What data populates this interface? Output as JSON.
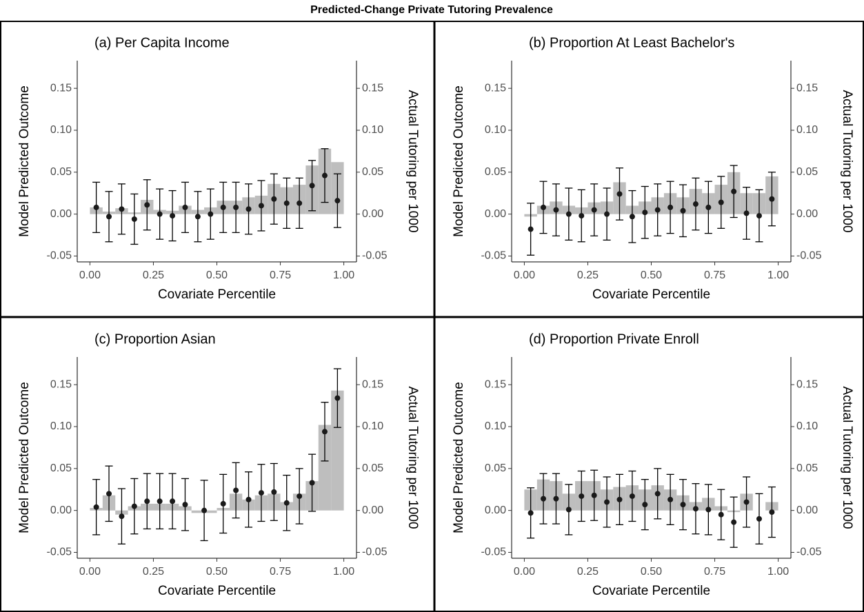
{
  "title": "Predicted-Change Private Tutoring Prevalence",
  "chart_data": [
    {
      "type": "combo",
      "title": "(a) Per Capita Income",
      "xlabel": "Covariate Percentile",
      "ylabel": "Model Predicted Outcome",
      "y2label": "Actual Tutoring per 1000",
      "xlim": [
        -0.05,
        1.05
      ],
      "ylim": [
        -0.057,
        0.183
      ],
      "y2lim": [
        -0.057,
        0.183
      ],
      "xticks": [
        {
          "value": 0,
          "label": "0.00"
        },
        {
          "value": 0.25,
          "label": "0.25"
        },
        {
          "value": 0.5,
          "label": "0.50"
        },
        {
          "value": 0.75,
          "label": "0.75"
        },
        {
          "value": 1,
          "label": "1.00"
        }
      ],
      "yticks": [
        {
          "value": -0.05,
          "label": "-0.05"
        },
        {
          "value": 0,
          "label": "0.00"
        },
        {
          "value": 0.05,
          "label": "0.05"
        },
        {
          "value": 0.1,
          "label": "0.10"
        },
        {
          "value": 0.15,
          "label": "0.15"
        }
      ],
      "y2ticks": [
        {
          "value": -0.05,
          "label": "-0.05"
        },
        {
          "value": 0,
          "label": "0.00"
        },
        {
          "value": 0.05,
          "label": "0.05"
        },
        {
          "value": 0.1,
          "label": "0.10"
        },
        {
          "value": 0.15,
          "label": "0.15"
        }
      ],
      "bins": [
        0,
        0.05,
        0.1,
        0.15,
        0.2,
        0.25,
        0.3,
        0.35,
        0.4,
        0.45,
        0.5,
        0.55,
        0.6,
        0.65,
        0.7,
        0.75,
        0.8,
        0.85,
        0.9,
        0.95,
        1
      ],
      "bars": {
        "color": "#bebebe",
        "values": [
          0.008,
          0.003,
          0.007,
          0.002,
          0.017,
          0.005,
          0.004,
          0.01,
          0.005,
          0.008,
          0.016,
          0.016,
          0.02,
          0.022,
          0.036,
          0.032,
          0.035,
          0.058,
          0.078,
          0.062
        ]
      },
      "points": {
        "color": "#1a1a1a",
        "values": [
          0.008,
          -0.003,
          0.006,
          -0.006,
          0.011,
          0.0,
          -0.002,
          0.008,
          -0.003,
          0.0,
          0.008,
          0.008,
          0.006,
          0.01,
          0.018,
          0.013,
          0.013,
          0.034,
          0.046,
          0.016
        ],
        "errors": [
          0.03,
          0.03,
          0.03,
          0.03,
          0.03,
          0.03,
          0.03,
          0.03,
          0.03,
          0.03,
          0.03,
          0.03,
          0.03,
          0.03,
          0.03,
          0.03,
          0.03,
          0.03,
          0.032,
          0.032
        ]
      }
    },
    {
      "type": "combo",
      "title": "(b) Proportion At Least Bachelor's",
      "xlabel": "Covariate Percentile",
      "ylabel": "Model Predicted Outcome",
      "y2label": "Actual Tutoring per 1000",
      "xlim": [
        -0.05,
        1.05
      ],
      "ylim": [
        -0.057,
        0.183
      ],
      "y2lim": [
        -0.057,
        0.183
      ],
      "xticks": [
        {
          "value": 0,
          "label": "0.00"
        },
        {
          "value": 0.25,
          "label": "0.25"
        },
        {
          "value": 0.5,
          "label": "0.50"
        },
        {
          "value": 0.75,
          "label": "0.75"
        },
        {
          "value": 1,
          "label": "1.00"
        }
      ],
      "yticks": [
        {
          "value": -0.05,
          "label": "-0.05"
        },
        {
          "value": 0,
          "label": "0.00"
        },
        {
          "value": 0.05,
          "label": "0.05"
        },
        {
          "value": 0.1,
          "label": "0.10"
        },
        {
          "value": 0.15,
          "label": "0.15"
        }
      ],
      "y2ticks": [
        {
          "value": -0.05,
          "label": "-0.05"
        },
        {
          "value": 0,
          "label": "0.00"
        },
        {
          "value": 0.05,
          "label": "0.05"
        },
        {
          "value": 0.1,
          "label": "0.10"
        },
        {
          "value": 0.15,
          "label": "0.15"
        }
      ],
      "bins": [
        0,
        0.05,
        0.1,
        0.15,
        0.2,
        0.25,
        0.3,
        0.35,
        0.4,
        0.45,
        0.5,
        0.55,
        0.6,
        0.65,
        0.7,
        0.75,
        0.8,
        0.85,
        0.9,
        0.95,
        1
      ],
      "bars": {
        "color": "#bebebe",
        "values": [
          -0.003,
          0.01,
          0.015,
          0.01,
          0.008,
          0.014,
          0.015,
          0.038,
          0.01,
          0.015,
          0.02,
          0.025,
          0.02,
          0.03,
          0.025,
          0.035,
          0.05,
          0.025,
          0.025,
          0.045
        ]
      },
      "points": {
        "color": "#1a1a1a",
        "values": [
          -0.018,
          0.008,
          0.005,
          0.0,
          -0.002,
          0.005,
          0.0,
          0.024,
          -0.003,
          0.002,
          0.005,
          0.008,
          0.004,
          0.012,
          0.008,
          0.014,
          0.027,
          0.001,
          -0.002,
          0.018
        ],
        "errors": [
          0.031,
          0.031,
          0.031,
          0.031,
          0.031,
          0.031,
          0.031,
          0.031,
          0.031,
          0.031,
          0.031,
          0.031,
          0.031,
          0.031,
          0.031,
          0.031,
          0.031,
          0.031,
          0.031,
          0.032
        ]
      }
    },
    {
      "type": "combo",
      "title": "(c) Proportion Asian",
      "xlabel": "Covariate Percentile",
      "ylabel": "Model Predicted Outcome",
      "y2label": "Actual Tutoring per 1000",
      "xlim": [
        -0.05,
        1.05
      ],
      "ylim": [
        -0.057,
        0.183
      ],
      "y2lim": [
        -0.057,
        0.183
      ],
      "xticks": [
        {
          "value": 0,
          "label": "0.00"
        },
        {
          "value": 0.25,
          "label": "0.25"
        },
        {
          "value": 0.5,
          "label": "0.50"
        },
        {
          "value": 0.75,
          "label": "0.75"
        },
        {
          "value": 1,
          "label": "1.00"
        }
      ],
      "yticks": [
        {
          "value": -0.05,
          "label": "-0.05"
        },
        {
          "value": 0,
          "label": "0.00"
        },
        {
          "value": 0.05,
          "label": "0.05"
        },
        {
          "value": 0.1,
          "label": "0.10"
        },
        {
          "value": 0.15,
          "label": "0.15"
        }
      ],
      "y2ticks": [
        {
          "value": -0.05,
          "label": "-0.05"
        },
        {
          "value": 0,
          "label": "0.00"
        },
        {
          "value": 0.05,
          "label": "0.05"
        },
        {
          "value": 0.1,
          "label": "0.10"
        },
        {
          "value": 0.15,
          "label": "0.15"
        }
      ],
      "bins": [
        0,
        0.05,
        0.1,
        0.15,
        0.2,
        0.25,
        0.3,
        0.35,
        0.4,
        0.5,
        0.55,
        0.6,
        0.65,
        0.7,
        0.75,
        0.8,
        0.85,
        0.9,
        0.95,
        1
      ],
      "bars": {
        "color": "#bebebe",
        "values": [
          0.003,
          0.018,
          -0.005,
          0.005,
          0.008,
          0.008,
          0.008,
          0.005,
          -0.003,
          0.003,
          0.02,
          0.013,
          0.018,
          0.02,
          0.01,
          0.02,
          0.035,
          0.102,
          0.143
        ]
      },
      "points": {
        "color": "#1a1a1a",
        "values": [
          0.004,
          0.02,
          -0.007,
          0.005,
          0.011,
          0.011,
          0.011,
          0.007,
          0.0,
          0.008,
          0.024,
          0.013,
          0.021,
          0.022,
          0.009,
          0.017,
          0.033,
          0.094,
          0.134
        ],
        "errors": [
          0.033,
          0.033,
          0.033,
          0.033,
          0.033,
          0.033,
          0.033,
          0.031,
          0.036,
          0.035,
          0.033,
          0.033,
          0.034,
          0.034,
          0.033,
          0.033,
          0.034,
          0.035,
          0.035
        ]
      }
    },
    {
      "type": "combo",
      "title": "(d) Proportion Private Enroll",
      "xlabel": "Covariate Percentile",
      "ylabel": "Model Predicted Outcome",
      "y2label": "Actual Tutoring per 1000",
      "xlim": [
        -0.05,
        1.05
      ],
      "ylim": [
        -0.057,
        0.183
      ],
      "y2lim": [
        -0.057,
        0.183
      ],
      "xticks": [
        {
          "value": 0,
          "label": "0.00"
        },
        {
          "value": 0.25,
          "label": "0.25"
        },
        {
          "value": 0.5,
          "label": "0.50"
        },
        {
          "value": 0.75,
          "label": "0.75"
        },
        {
          "value": 1,
          "label": "1.00"
        }
      ],
      "yticks": [
        {
          "value": -0.05,
          "label": "-0.05"
        },
        {
          "value": 0,
          "label": "0.00"
        },
        {
          "value": 0.05,
          "label": "0.05"
        },
        {
          "value": 0.1,
          "label": "0.10"
        },
        {
          "value": 0.15,
          "label": "0.15"
        }
      ],
      "y2ticks": [
        {
          "value": -0.05,
          "label": "-0.05"
        },
        {
          "value": 0,
          "label": "0.00"
        },
        {
          "value": 0.05,
          "label": "0.05"
        },
        {
          "value": 0.1,
          "label": "0.10"
        },
        {
          "value": 0.15,
          "label": "0.15"
        }
      ],
      "bins": [
        0,
        0.05,
        0.1,
        0.15,
        0.2,
        0.25,
        0.3,
        0.35,
        0.4,
        0.45,
        0.5,
        0.55,
        0.6,
        0.65,
        0.7,
        0.75,
        0.8,
        0.85,
        0.9,
        0.95,
        1
      ],
      "bars": {
        "color": "#bebebe",
        "values": [
          0.025,
          0.037,
          0.035,
          0.02,
          0.035,
          0.035,
          0.025,
          0.028,
          0.03,
          0.025,
          0.03,
          0.025,
          0.018,
          0.01,
          0.015,
          0.005,
          -0.002,
          0.02,
          0.0,
          0.01
        ]
      },
      "points": {
        "color": "#1a1a1a",
        "values": [
          -0.003,
          0.014,
          0.014,
          0.001,
          0.017,
          0.018,
          0.01,
          0.013,
          0.017,
          0.007,
          0.02,
          0.013,
          0.007,
          0.002,
          0.001,
          -0.005,
          -0.014,
          0.01,
          -0.01,
          -0.002
        ],
        "errors": [
          0.03,
          0.03,
          0.03,
          0.03,
          0.03,
          0.03,
          0.03,
          0.03,
          0.03,
          0.03,
          0.03,
          0.03,
          0.03,
          0.03,
          0.03,
          0.03,
          0.03,
          0.03,
          0.03,
          0.03
        ]
      }
    }
  ]
}
